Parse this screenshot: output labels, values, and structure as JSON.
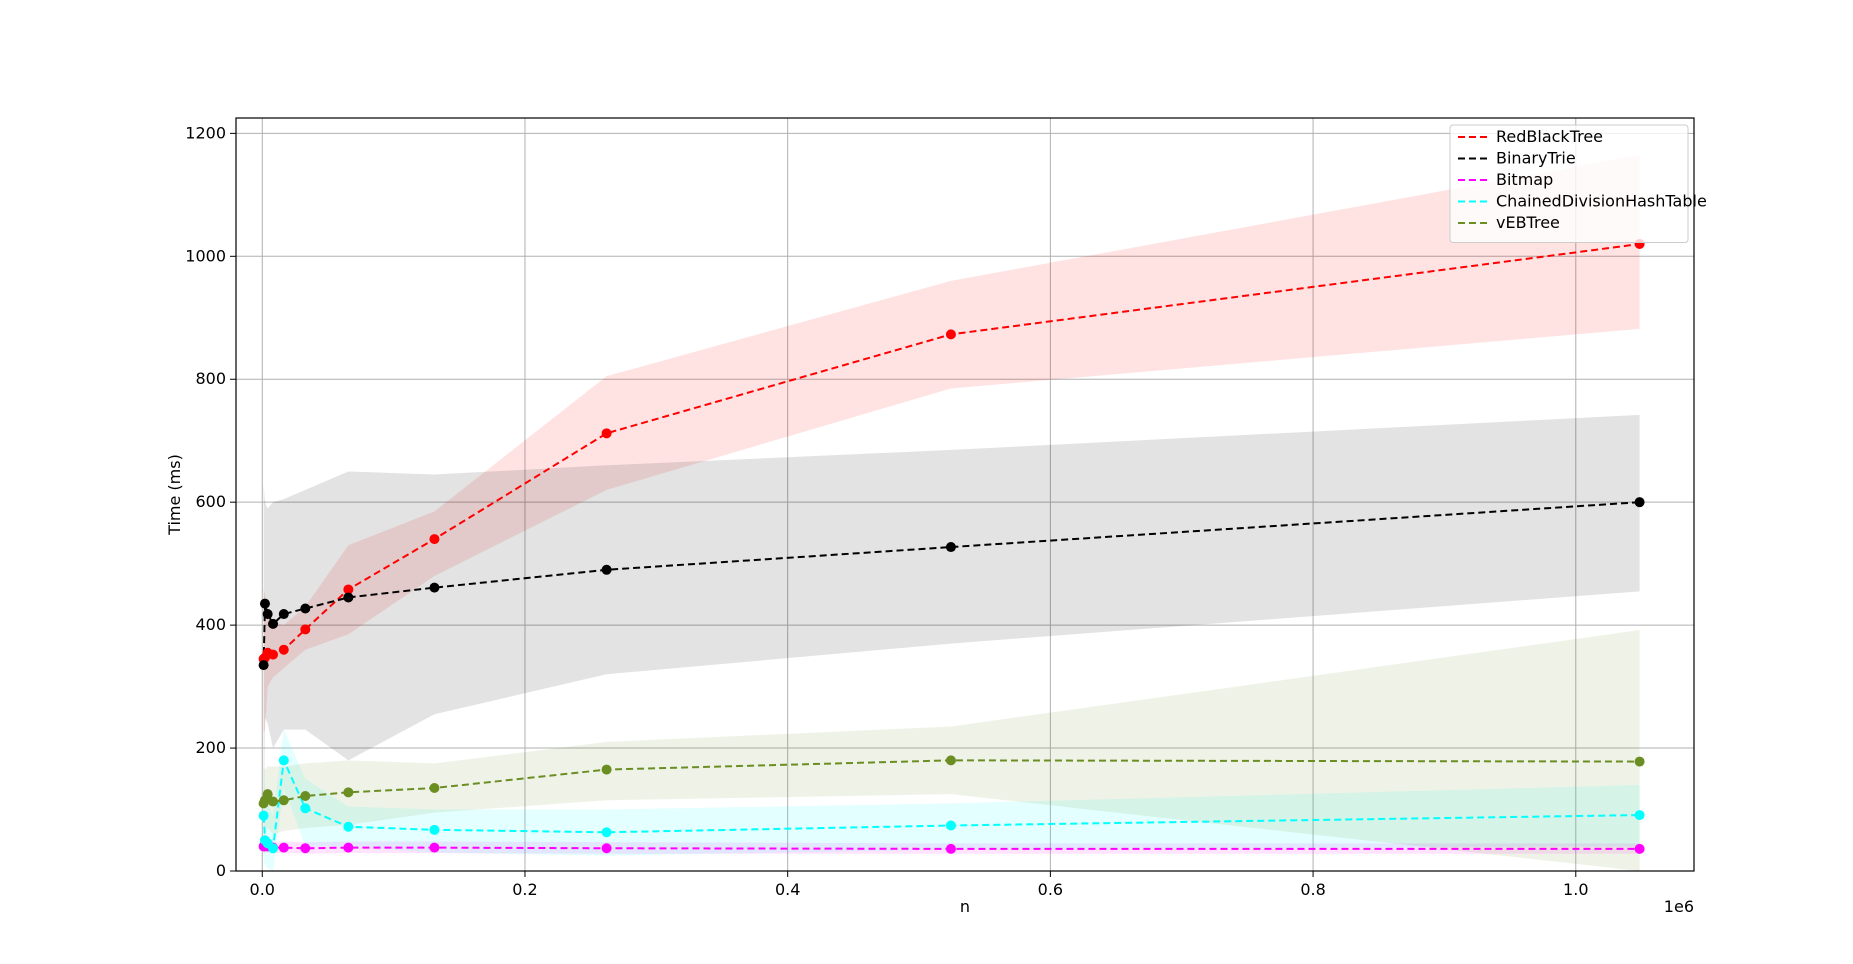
{
  "chart_data": {
    "type": "line",
    "xlabel": "n",
    "ylabel": "Time (ms)",
    "x_offset_label": "1e6",
    "xlim": [
      -20000,
      1090000
    ],
    "ylim": [
      0,
      1225
    ],
    "xticks": [
      0,
      200000,
      400000,
      600000,
      800000,
      1000000
    ],
    "xtick_labels": [
      "0.0",
      "0.2",
      "0.4",
      "0.6",
      "0.8",
      "1.0"
    ],
    "yticks": [
      0,
      200,
      400,
      600,
      800,
      1000,
      1200
    ],
    "ytick_labels": [
      "0",
      "200",
      "400",
      "600",
      "800",
      "1000",
      "1200"
    ],
    "grid": true,
    "legend_position": "top-right",
    "x": [
      1024,
      2048,
      4096,
      8192,
      16384,
      32768,
      65536,
      131072,
      262144,
      524288,
      1048576
    ],
    "series": [
      {
        "name": "RedBlackTree",
        "color": "#ff0000",
        "values": [
          345,
          347,
          355,
          352,
          360,
          393,
          458,
          540,
          712,
          873,
          1020
        ],
        "lower": [
          225,
          230,
          300,
          315,
          330,
          360,
          385,
          480,
          620,
          785,
          882
        ],
        "upper": [
          460,
          450,
          420,
          405,
          400,
          430,
          530,
          585,
          805,
          960,
          1165
        ]
      },
      {
        "name": "BinaryTrie",
        "color": "#000000",
        "values": [
          335,
          435,
          418,
          402,
          418,
          427,
          445,
          461,
          490,
          527,
          600
        ],
        "lower": [
          40,
          250,
          240,
          200,
          230,
          230,
          180,
          255,
          320,
          370,
          455
        ],
        "upper": [
          630,
          600,
          590,
          600,
          605,
          620,
          650,
          645,
          660,
          685,
          742
        ]
      },
      {
        "name": "Bitmap",
        "color": "#ff00ff",
        "values": [
          40,
          40,
          40,
          38,
          38,
          37,
          38,
          38,
          37,
          36,
          36
        ],
        "lower": [
          28,
          30,
          30,
          29,
          29,
          28,
          29,
          29,
          28,
          28,
          28
        ],
        "upper": [
          52,
          52,
          52,
          48,
          48,
          47,
          48,
          48,
          47,
          45,
          45
        ]
      },
      {
        "name": "ChainedDivisionHashTable",
        "color": "#00ffff",
        "values": [
          90,
          50,
          45,
          37,
          180,
          102,
          72,
          67,
          63,
          74,
          91
        ],
        "lower": [
          20,
          10,
          5,
          0,
          135,
          40,
          40,
          30,
          25,
          35,
          40
        ],
        "upper": [
          180,
          130,
          110,
          90,
          230,
          150,
          105,
          100,
          100,
          110,
          140
        ]
      },
      {
        "name": "vEBTree",
        "color": "#6b8e23",
        "values": [
          110,
          115,
          125,
          113,
          115,
          122,
          128,
          135,
          165,
          180,
          178
        ],
        "lower": [
          55,
          60,
          70,
          60,
          65,
          70,
          75,
          95,
          115,
          125,
          0
        ],
        "upper": [
          170,
          165,
          170,
          170,
          170,
          175,
          180,
          175,
          210,
          235,
          392
        ]
      }
    ]
  }
}
